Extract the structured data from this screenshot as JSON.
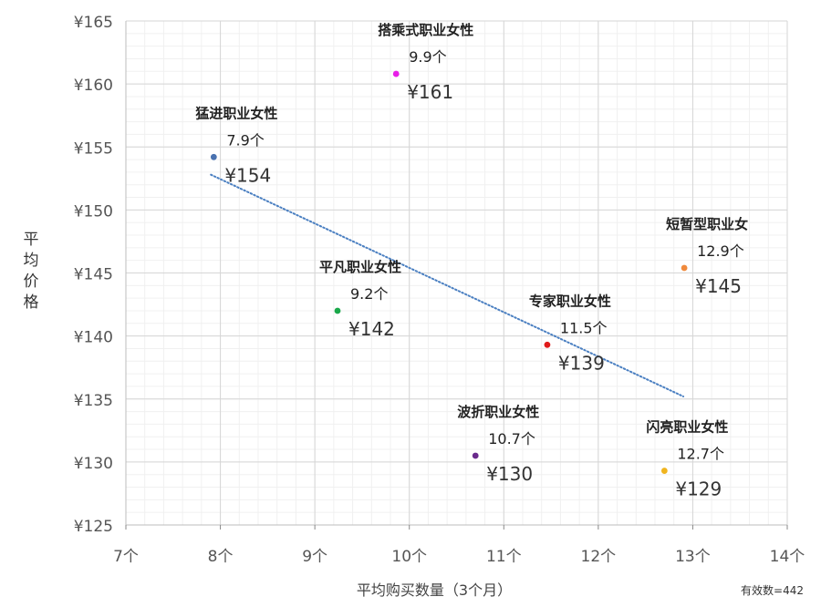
{
  "chart_data": {
    "type": "scatter",
    "xlabel": "平均购买数量（3个月）",
    "ylabel": "平均价格",
    "xlim": [
      7,
      14
    ],
    "ylim": [
      125,
      165
    ],
    "x_ticks": [
      "7个",
      "8个",
      "9个",
      "10个",
      "11个",
      "12个",
      "13个",
      "14个"
    ],
    "y_ticks": [
      "¥125",
      "¥130",
      "¥135",
      "¥140",
      "¥145",
      "¥150",
      "¥155",
      "¥160",
      "¥165"
    ],
    "grid": true,
    "note": "有效数=442",
    "trendline": {
      "style": "dotted",
      "color": "#4a7fc1",
      "from": [
        7.9,
        152.8
      ],
      "to": [
        12.9,
        135.2
      ]
    },
    "points": [
      {
        "name": "猛进职业女性",
        "x": 7.93,
        "y": 154.2,
        "count_label": "7.9个",
        "price_label": "¥154",
        "color": "#4a72b0"
      },
      {
        "name": "搭乘式职业女性",
        "x": 9.86,
        "y": 160.8,
        "count_label": "9.9个",
        "price_label": "¥161",
        "color": "#e81ee8"
      },
      {
        "name": "平凡职业女性",
        "x": 9.24,
        "y": 142.0,
        "count_label": "9.2个",
        "price_label": "¥142",
        "color": "#1aa84a"
      },
      {
        "name": "专家职业女性",
        "x": 11.46,
        "y": 139.3,
        "count_label": "11.5个",
        "price_label": "¥139",
        "color": "#e01a1a"
      },
      {
        "name": "短暂型职业女",
        "x": 12.91,
        "y": 145.4,
        "count_label": "12.9个",
        "price_label": "¥145",
        "color": "#f08a3c"
      },
      {
        "name": "波折职业女性",
        "x": 10.7,
        "y": 130.5,
        "count_label": "10.7个",
        "price_label": "¥130",
        "color": "#6a2a8c"
      },
      {
        "name": "闪亮职业女性",
        "x": 12.7,
        "y": 129.3,
        "count_label": "12.7个",
        "price_label": "¥129",
        "color": "#f0b41e"
      }
    ]
  }
}
